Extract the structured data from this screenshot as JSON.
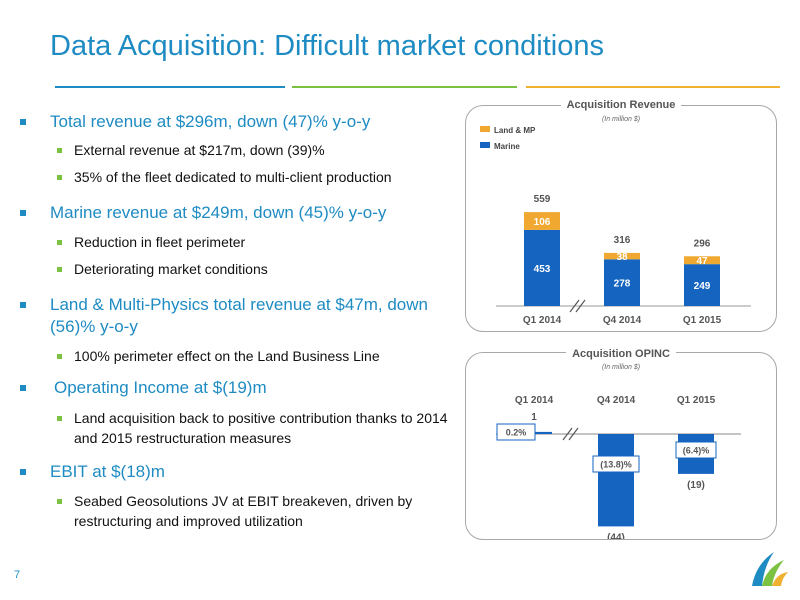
{
  "slide": {
    "title": "Data Acquisition: Difficult market conditions",
    "page_number": "7",
    "rule_colors": [
      "#1e8bc3",
      "#7cc242",
      "#f0b030"
    ]
  },
  "bullets": [
    {
      "text": "Total revenue at $296m, down (47)% y-o-y",
      "subs": [
        "External revenue at $217m, down (39)%",
        "35% of the fleet dedicated to multi-client production"
      ]
    },
    {
      "text": "Marine revenue at $249m, down (45)% y-o-y",
      "subs": [
        "Reduction in fleet perimeter",
        "Deteriorating market conditions"
      ]
    },
    {
      "text": "Land & Multi-Physics total revenue at $47m, down (56)% y-o-y",
      "subs": [
        "100% perimeter effect on the Land Business Line"
      ]
    },
    {
      "text": "Operating Income at $(19)m",
      "subs": [
        "Land acquisition back to positive contribution thanks to 2014 and 2015 restructuration measures"
      ]
    },
    {
      "text": "EBIT at $(18)m",
      "subs": [
        "Seabed Geosolutions JV at EBIT breakeven, driven by restructuring and improved utilization"
      ]
    }
  ],
  "chart_data": [
    {
      "type": "bar",
      "title": "Acquisition Revenue",
      "subtitle": "(In million $)",
      "categories": [
        "Q1 2014",
        "Q4 2014",
        "Q1 2015"
      ],
      "series": [
        {
          "name": "Marine",
          "values": [
            453,
            278,
            249
          ],
          "labels": [
            "453",
            "278",
            "249"
          ],
          "color": "#1565c0"
        },
        {
          "name": "Land & MP",
          "values": [
            106,
            38,
            47
          ],
          "labels": [
            "106",
            "38",
            "47"
          ],
          "color": "#f0a830"
        }
      ],
      "totals": [
        559,
        316,
        296
      ],
      "total_labels": [
        "559",
        "316",
        "296"
      ],
      "ylim": [
        0,
        600
      ],
      "stacked": true,
      "legend": "top-left"
    },
    {
      "type": "bar",
      "title": "Acquisition OPINC",
      "subtitle": "(In million $)",
      "categories": [
        "Q1 2014",
        "Q4 2014",
        "Q1 2015"
      ],
      "values": [
        1,
        -44,
        -19
      ],
      "value_labels": [
        "1",
        "(44)",
        "(19)"
      ],
      "margins": [
        "0.2%",
        "(13.8)%",
        "(6.4)%"
      ],
      "ylim": [
        -50,
        5
      ],
      "color": "#1565c0"
    }
  ]
}
